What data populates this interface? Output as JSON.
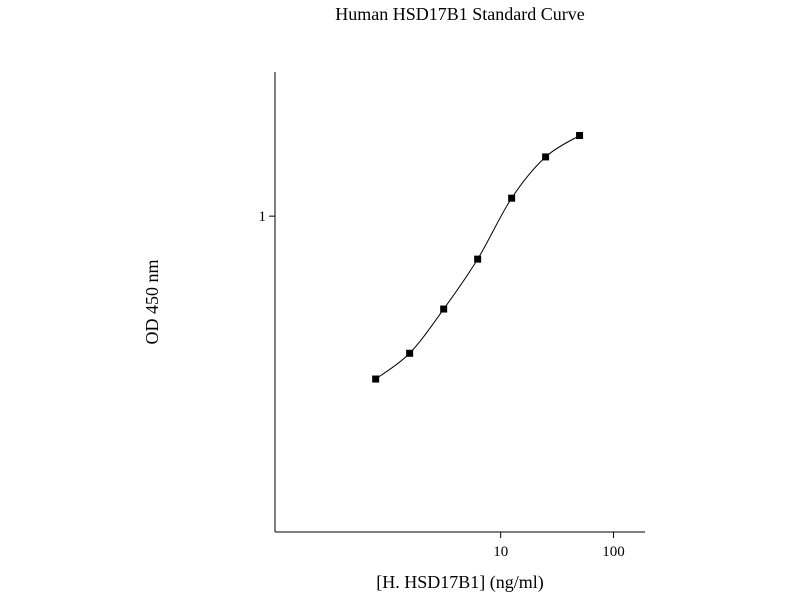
{
  "chart_data": {
    "type": "line",
    "title": "Human HSD17B1 Standard Curve",
    "x_label": "[H. HSD17B1] (ng/ml)",
    "y_label": "OD 450 nm",
    "x": [
      0.78,
      1.56,
      3.125,
      6.25,
      12.5,
      25,
      50
    ],
    "series": [
      {
        "color": "#000000",
        "values": [
          0.305,
          0.368,
          0.508,
          0.731,
          1.14,
          1.54,
          1.8
        ]
      }
    ],
    "xscale": "log",
    "yscale": "log",
    "xlim": [
      0.1,
      190
    ],
    "ylim": [
      0.1,
      2.86
    ],
    "xticks": [
      10,
      100
    ],
    "yticks": [
      1
    ],
    "markers": true,
    "smooth": true
  }
}
